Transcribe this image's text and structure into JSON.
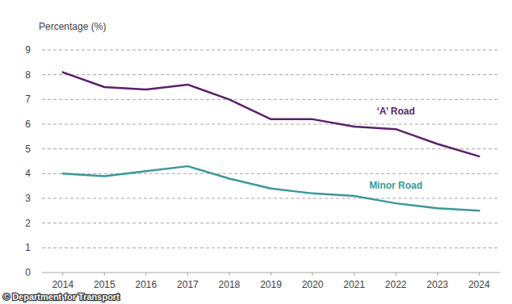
{
  "chart_data": {
    "type": "line",
    "y_label": "Percentage (%)",
    "source": "© Department for Transport",
    "categories": [
      "2014",
      "2015",
      "2016",
      "2017",
      "2018",
      "2019",
      "2020",
      "2021",
      "2022",
      "2023",
      "2024"
    ],
    "series": [
      {
        "name": "‘A’ Road",
        "color": "#5c1f6b",
        "values": [
          8.1,
          7.5,
          7.4,
          7.6,
          7.0,
          6.2,
          6.2,
          5.9,
          5.8,
          5.2,
          4.7
        ]
      },
      {
        "name": "Minor Road",
        "color": "#3b9996",
        "values": [
          4.0,
          3.9,
          4.1,
          4.3,
          3.8,
          3.4,
          3.2,
          3.1,
          2.8,
          2.6,
          2.5
        ]
      }
    ],
    "ylim": [
      0,
      9
    ],
    "yticks": [
      0,
      1,
      2,
      3,
      4,
      5,
      6,
      7,
      8,
      9
    ],
    "grid": true
  }
}
